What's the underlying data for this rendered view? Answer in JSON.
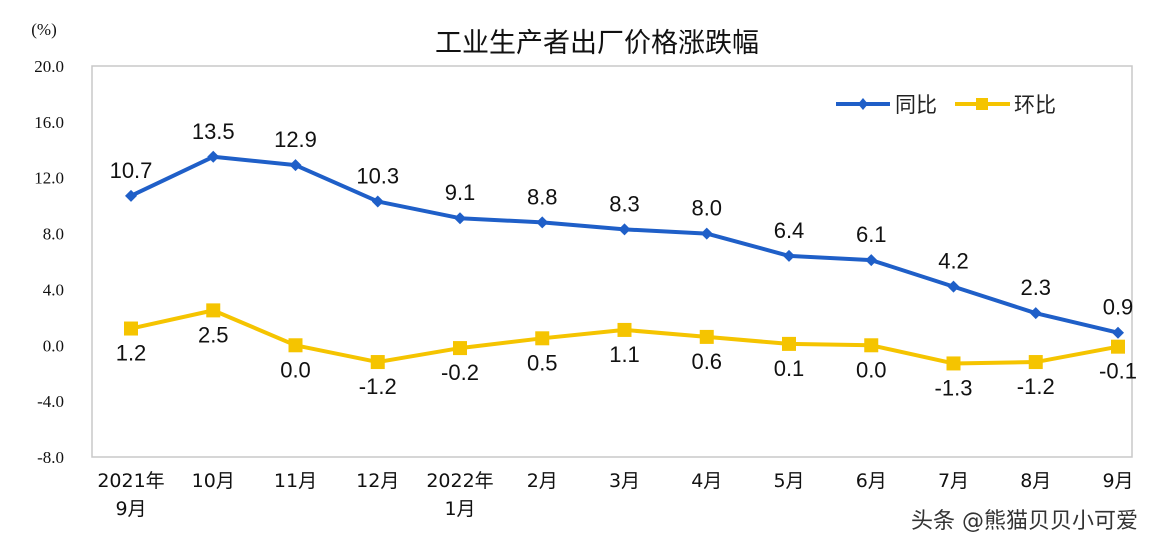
{
  "chart_data": {
    "type": "line",
    "title": "工业生产者出厂价格涨跌幅",
    "ylabel": "(%)",
    "xlabel": "",
    "ylim": [
      -8,
      20
    ],
    "yticks": [
      "20.0",
      "16.0",
      "12.0",
      "8.0",
      "4.0",
      "0.0",
      "-4.0",
      "-8.0"
    ],
    "ytick_values": [
      20,
      16,
      12,
      8,
      4,
      0,
      -4,
      -8
    ],
    "grid": false,
    "legend_position": "top-right",
    "categories": [
      [
        "2021年",
        "9月"
      ],
      [
        "10月"
      ],
      [
        "11月"
      ],
      [
        "12月"
      ],
      [
        "2022年",
        "1月"
      ],
      [
        "2月"
      ],
      [
        "3月"
      ],
      [
        "4月"
      ],
      [
        "5月"
      ],
      [
        "6月"
      ],
      [
        "7月"
      ],
      [
        "8月"
      ],
      [
        "9月"
      ]
    ],
    "series": [
      {
        "name": "同比",
        "color": "#1f5fc8",
        "values": [
          10.7,
          13.5,
          12.9,
          10.3,
          9.1,
          8.8,
          8.3,
          8.0,
          6.4,
          6.1,
          4.2,
          2.3,
          0.9
        ],
        "labels": [
          "10.7",
          "13.5",
          "12.9",
          "10.3",
          "9.1",
          "8.8",
          "8.3",
          "8.0",
          "6.4",
          "6.1",
          "4.2",
          "2.3",
          "0.9"
        ]
      },
      {
        "name": "环比",
        "color": "#f5c400",
        "values": [
          1.2,
          2.5,
          0.0,
          -1.2,
          -0.2,
          0.5,
          1.1,
          0.6,
          0.1,
          0.0,
          -1.3,
          -1.2,
          -0.1
        ],
        "labels": [
          "1.2",
          "2.5",
          "0.0",
          "-1.2",
          "-0.2",
          "0.5",
          "1.1",
          "0.6",
          "0.1",
          "0.0",
          "-1.3",
          "-1.2",
          "-0.1"
        ]
      }
    ]
  },
  "watermark": "头条 @熊猫贝贝小可爱"
}
